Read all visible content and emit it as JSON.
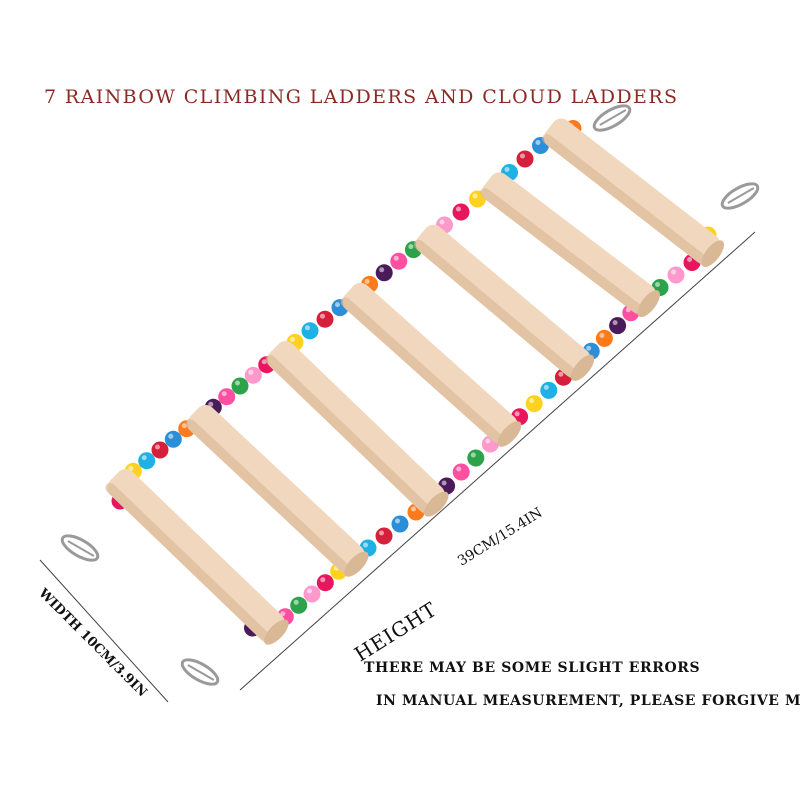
{
  "title": "7 RAINBOW CLIMBING LADDERS AND CLOUD LADDERS",
  "dimensions": {
    "height_label": "HEIGHT",
    "height_value": "39CM/15.4IN",
    "width_label": "WIDTH 10CM/3.9IN"
  },
  "notes": [
    "THERE MAY BE SOME SLIGHT ERRORS",
    "IN MANUAL MEASUREMENT, PLEASE FORGIVE ME!"
  ],
  "colors": {
    "background": "#ffffff",
    "title": "#8a2a22",
    "wood": "#f0d7bd",
    "wood_shade": "#d8b895",
    "hook": "#9a9a9a",
    "beads": [
      "#e8175d",
      "#ff4fa0",
      "#2a8fd8",
      "#ffd21f",
      "#2ca24a",
      "#ff7a1a",
      "#1fb0e6",
      "#ff99cc",
      "#4a1a5a",
      "#d61f3a"
    ]
  },
  "image": {
    "description_icon": "bird-ladder-toy-icon",
    "rung_count": 7
  }
}
